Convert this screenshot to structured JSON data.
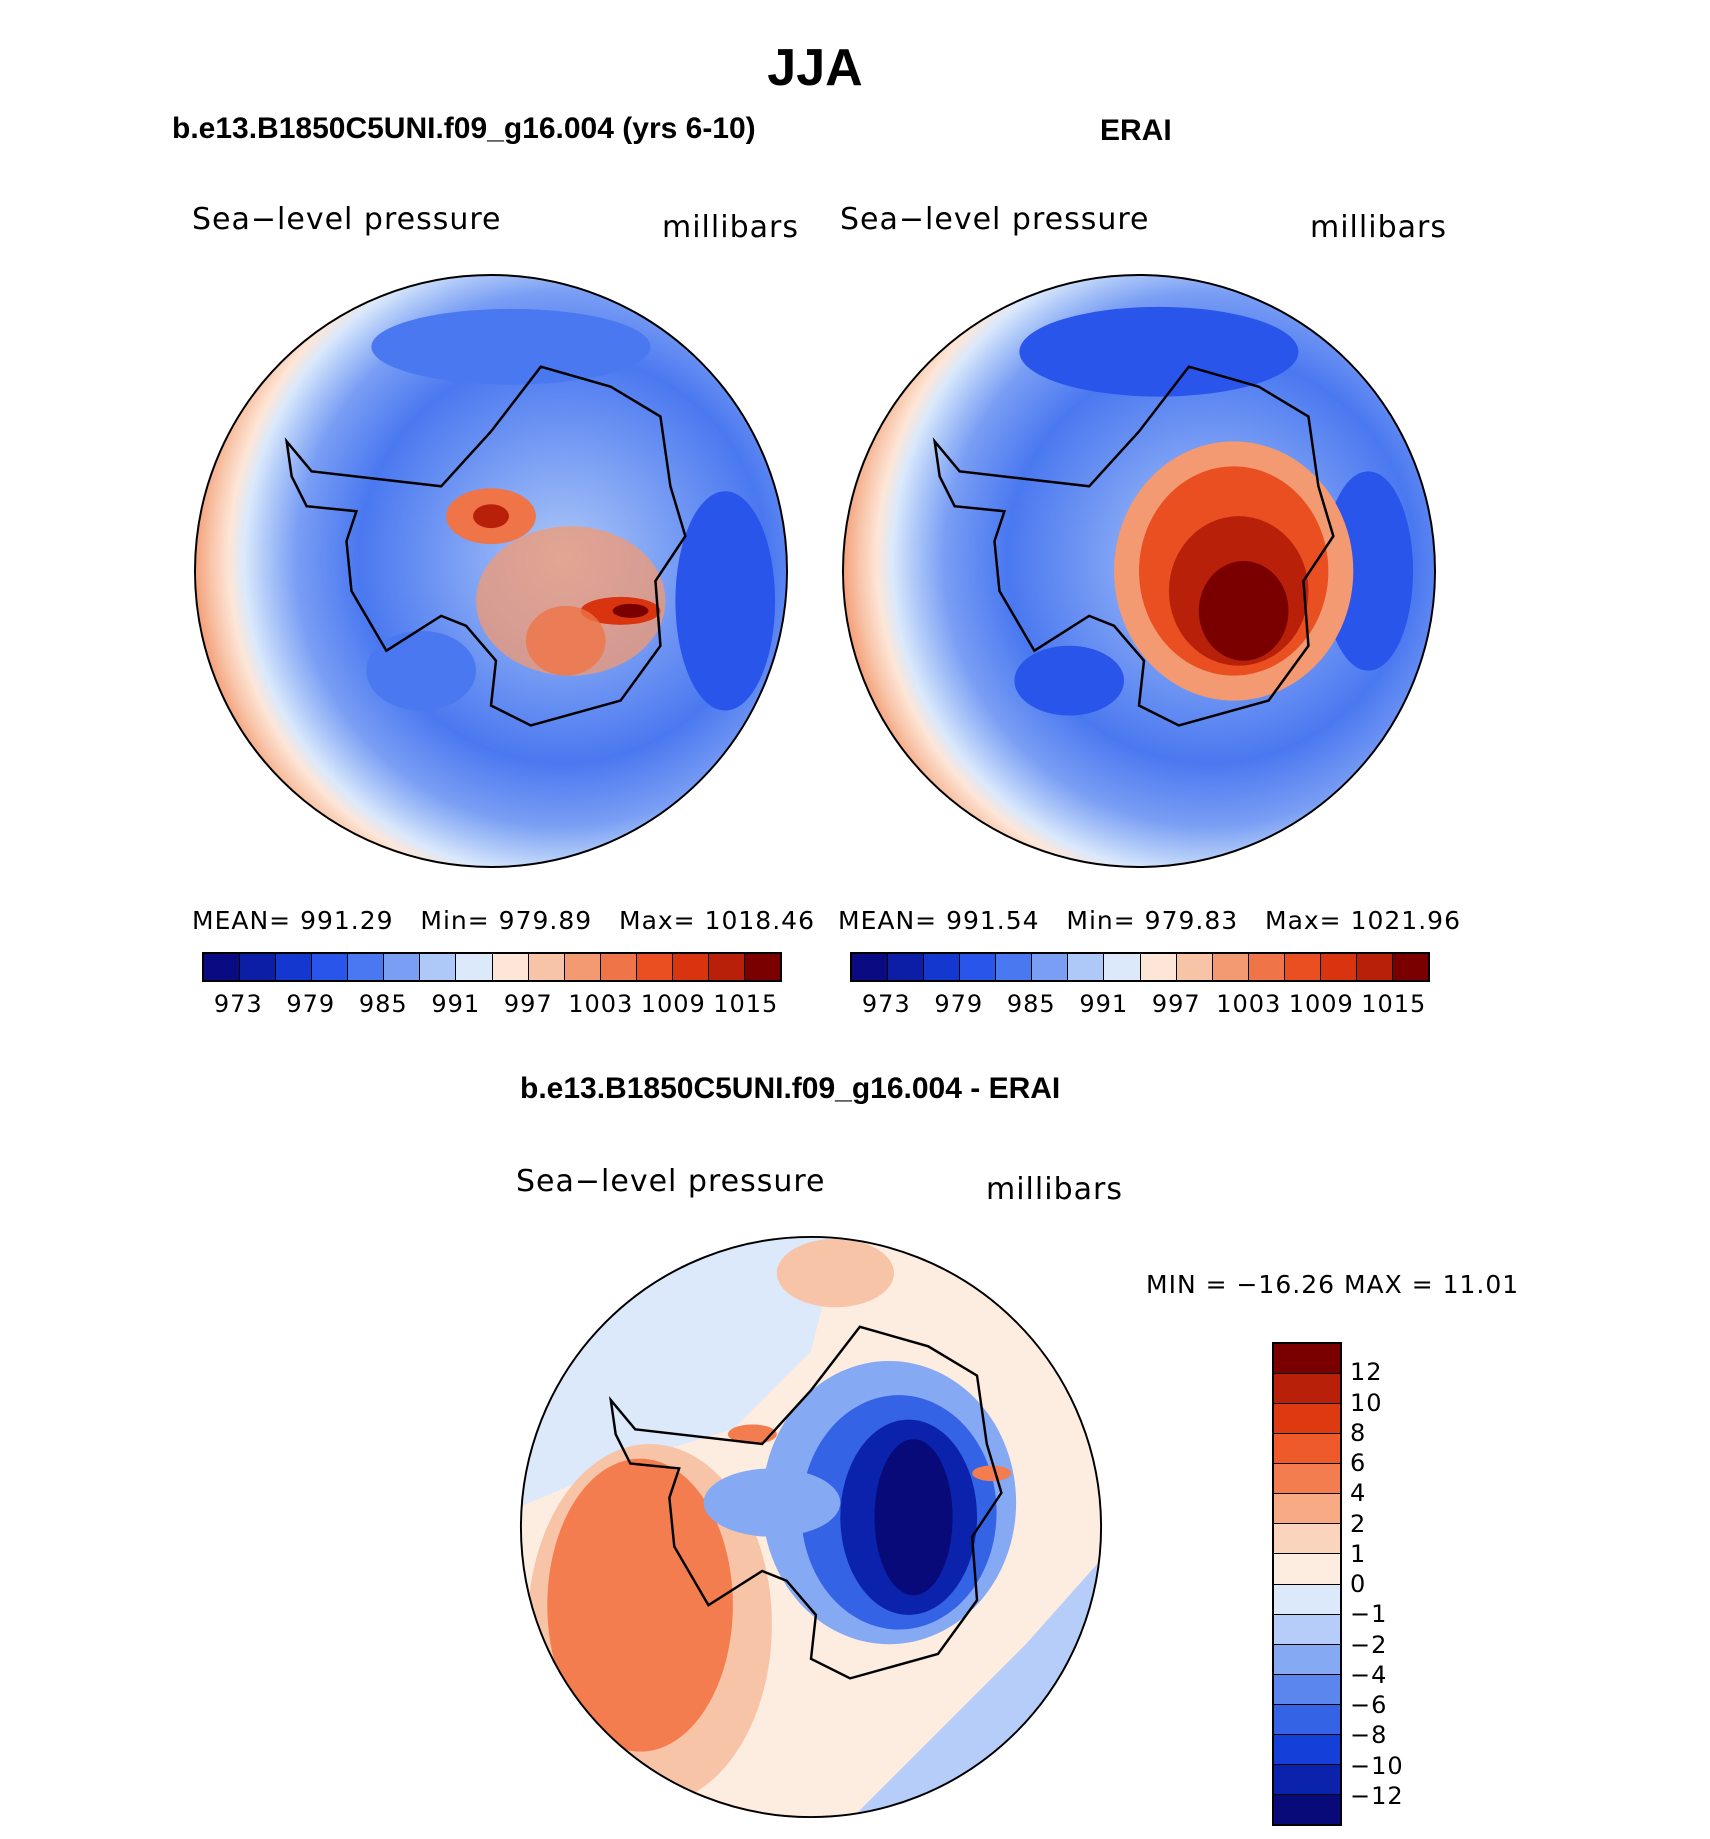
{
  "figure": {
    "season": "JJA"
  },
  "panels": [
    {
      "title": "b.e13.B1850C5UNI.f09_g16.004 (yrs 6-10)",
      "variable": "Sea−level pressure",
      "units": "millibars",
      "stats": {
        "mean_label": "MEAN=",
        "mean": "991.29",
        "min_label": "Min=",
        "min": "979.89",
        "max_label": "Max=",
        "max": "1018.46"
      }
    },
    {
      "title": "ERAI",
      "variable": "Sea−level pressure",
      "units": "millibars",
      "stats": {
        "mean_label": "MEAN=",
        "mean": "991.54",
        "min_label": "Min=",
        "min": "979.83",
        "max_label": "Max=",
        "max": "1021.96"
      }
    },
    {
      "title": "b.e13.B1850C5UNI.f09_g16.004 - ERAI",
      "variable": "Sea−level pressure",
      "units": "millibars",
      "stats": {
        "text": "MIN = −16.26 MAX =   11.01"
      }
    }
  ],
  "colorbar_abs": {
    "ticks": [
      "973",
      "979",
      "985",
      "991",
      "997",
      "1003",
      "1009",
      "1015"
    ],
    "colors": [
      "#0a0a82",
      "#0c1ea6",
      "#1437d0",
      "#2a55ea",
      "#4a78f0",
      "#7a9ef4",
      "#aec8f8",
      "#dbe9fb",
      "#fde6d7",
      "#f8c4a8",
      "#f39a72",
      "#ef7447",
      "#ea4f22",
      "#d7340f",
      "#b8200a",
      "#7a0000"
    ]
  },
  "colorbar_diff": {
    "ticks": [
      "12",
      "10",
      "8",
      "6",
      "4",
      "2",
      "1",
      "0",
      "−1",
      "−2",
      "−4",
      "−6",
      "−8",
      "−10",
      "−12"
    ],
    "colors": [
      "#7a0000",
      "#b8200a",
      "#dd3a12",
      "#ef5a2a",
      "#f37d4e",
      "#f7aa84",
      "#fbd4bd",
      "#fdece0",
      "#dbe9fb",
      "#b5cdf8",
      "#86a9f4",
      "#5a86ee",
      "#3463e6",
      "#143fd8",
      "#0b22ac",
      "#070a78"
    ]
  },
  "chart_data": [
    {
      "type": "heatmap",
      "title": "b.e13.B1850C5UNI.f09_g16.004 (yrs 6-10)",
      "variable": "Sea-level pressure",
      "units": "millibars",
      "projection": "south polar stereographic",
      "contour_levels": [
        973,
        976,
        979,
        982,
        985,
        988,
        991,
        994,
        997,
        1000,
        1003,
        1006,
        1009,
        1012,
        1015
      ],
      "mean": 991.29,
      "min": 979.89,
      "max": 1018.46
    },
    {
      "type": "heatmap",
      "title": "ERAI",
      "variable": "Sea-level pressure",
      "units": "millibars",
      "projection": "south polar stereographic",
      "contour_levels": [
        973,
        976,
        979,
        982,
        985,
        988,
        991,
        994,
        997,
        1000,
        1003,
        1006,
        1009,
        1012,
        1015
      ],
      "mean": 991.54,
      "min": 979.83,
      "max": 1021.96
    },
    {
      "type": "heatmap",
      "title": "b.e13.B1850C5UNI.f09_g16.004 - ERAI",
      "variable": "Sea-level pressure",
      "units": "millibars",
      "projection": "south polar stereographic",
      "contour_levels": [
        -12,
        -10,
        -8,
        -6,
        -4,
        -2,
        -1,
        0,
        1,
        2,
        4,
        6,
        8,
        10,
        12
      ],
      "min": -16.26,
      "max": 11.01
    }
  ]
}
